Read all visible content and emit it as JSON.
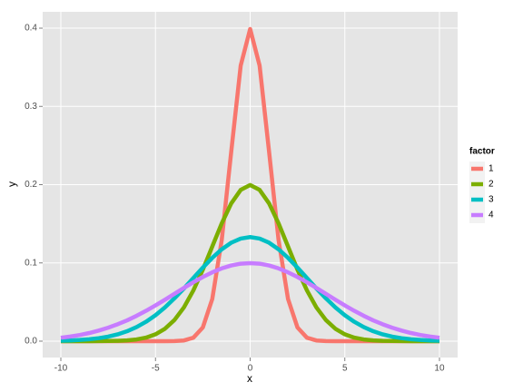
{
  "chart_data": {
    "type": "line",
    "x_label": "x",
    "y_label": "y",
    "x": [
      -10,
      -9.5,
      -9,
      -8.5,
      -8,
      -7.5,
      -7,
      -6.5,
      -6,
      -5.5,
      -5,
      -4.5,
      -4,
      -3.5,
      -3,
      -2.5,
      -2,
      -1.5,
      -1,
      -0.5,
      0,
      0.5,
      1,
      1.5,
      2,
      2.5,
      3,
      3.5,
      4,
      4.5,
      5,
      5.5,
      6,
      6.5,
      7,
      7.5,
      8,
      8.5,
      9,
      9.5,
      10
    ],
    "series": [
      {
        "name": "1",
        "color": "#F8766D",
        "values": [
          0,
          0,
          0,
          0,
          0,
          0,
          0,
          0,
          0,
          0,
          0,
          0,
          0.0001,
          0.0009,
          0.0044,
          0.0175,
          0.054,
          0.1295,
          0.242,
          0.3521,
          0.3989,
          0.3521,
          0.242,
          0.1295,
          0.054,
          0.0175,
          0.0044,
          0.0009,
          0.0001,
          0,
          0,
          0,
          0,
          0,
          0,
          0,
          0,
          0,
          0,
          0,
          0
        ]
      },
      {
        "name": "2",
        "color": "#7CAE00",
        "values": [
          0,
          0,
          0,
          0,
          0.0001,
          0.0002,
          0.0004,
          0.001,
          0.0022,
          0.0045,
          0.0088,
          0.0159,
          0.027,
          0.0431,
          0.0648,
          0.0913,
          0.121,
          0.1506,
          0.176,
          0.1933,
          0.1995,
          0.1933,
          0.176,
          0.1506,
          0.121,
          0.0913,
          0.0648,
          0.0431,
          0.027,
          0.0159,
          0.0088,
          0.0045,
          0.0022,
          0.001,
          0.0004,
          0.0002,
          0.0001,
          0,
          0,
          0,
          0
        ]
      },
      {
        "name": "3",
        "color": "#00BFC4",
        "values": [
          0.0005,
          0.0009,
          0.0015,
          0.0024,
          0.0038,
          0.0058,
          0.0087,
          0.0127,
          0.018,
          0.0248,
          0.0332,
          0.0432,
          0.0547,
          0.0673,
          0.0807,
          0.094,
          0.1065,
          0.1174,
          0.1258,
          0.1311,
          0.133,
          0.1311,
          0.1258,
          0.1174,
          0.1065,
          0.094,
          0.0807,
          0.0673,
          0.0547,
          0.0432,
          0.0332,
          0.0248,
          0.018,
          0.0127,
          0.0087,
          0.0058,
          0.0038,
          0.0024,
          0.0015,
          0.0009,
          0.0005
        ]
      },
      {
        "name": "4",
        "color": "#C77CFF",
        "values": [
          0.0044,
          0.0059,
          0.0079,
          0.0104,
          0.0135,
          0.0172,
          0.0216,
          0.0266,
          0.0324,
          0.0388,
          0.0457,
          0.053,
          0.0605,
          0.068,
          0.0753,
          0.082,
          0.088,
          0.093,
          0.0967,
          0.099,
          0.0997,
          0.099,
          0.0967,
          0.093,
          0.088,
          0.082,
          0.0753,
          0.068,
          0.0605,
          0.053,
          0.0457,
          0.0388,
          0.0324,
          0.0266,
          0.0216,
          0.0172,
          0.0135,
          0.0104,
          0.0079,
          0.0059,
          0.0044
        ]
      }
    ],
    "xlim": [
      -10.96,
      10.96
    ],
    "ylim": [
      -0.0209,
      0.4209
    ],
    "xticks": [
      -10,
      -5,
      0,
      5,
      10
    ],
    "yticks": [
      {
        "value": 0,
        "label": "0.0"
      },
      {
        "value": 0.1,
        "label": "0.1"
      },
      {
        "value": 0.2,
        "label": "0.2"
      },
      {
        "value": 0.3,
        "label": "0.3"
      },
      {
        "value": 0.4,
        "label": "0.4"
      }
    ],
    "grid": true,
    "legend_title": "factor",
    "legend_position": "right"
  }
}
